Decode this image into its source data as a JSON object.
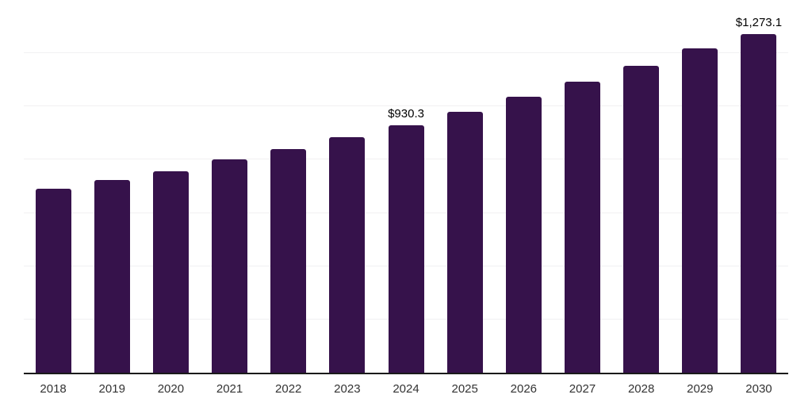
{
  "chart_data": {
    "type": "bar",
    "title": "",
    "xlabel": "",
    "ylabel": "",
    "categories": [
      "2018",
      "2019",
      "2020",
      "2021",
      "2022",
      "2023",
      "2024",
      "2025",
      "2026",
      "2027",
      "2028",
      "2029",
      "2030"
    ],
    "values": [
      692,
      724,
      757,
      800,
      840,
      886,
      930.3,
      980,
      1037,
      1092,
      1154,
      1217,
      1273.1
    ],
    "value_labels": [
      "",
      "",
      "",
      "",
      "",
      "",
      "$930.3",
      "",
      "",
      "",
      "",
      "",
      "$1,273.1"
    ],
    "ylim": [
      0,
      1400
    ],
    "gridline_step": 200,
    "grid": true,
    "legend": false,
    "colors": {
      "bar": "#36124b",
      "grid": "#f1f0f2",
      "axis_line": "#1a1a1a",
      "x_label": "#333333",
      "value_label": "#000000",
      "background": "#ffffff"
    }
  }
}
